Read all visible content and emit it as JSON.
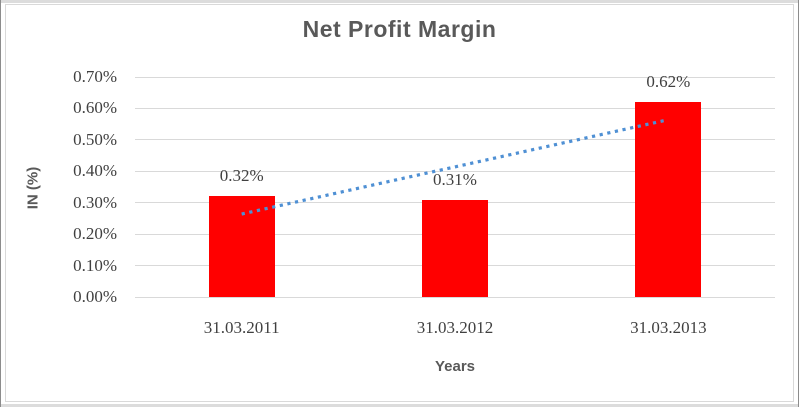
{
  "chart_data": {
    "type": "bar",
    "title": "Net Profit Margin",
    "xlabel": "Years",
    "ylabel": "IN (%)",
    "categories": [
      "31.03.2011",
      "31.03.2012",
      "31.03.2013"
    ],
    "values": [
      0.32,
      0.31,
      0.62
    ],
    "data_labels": [
      "0.32%",
      "0.31%",
      "0.62%"
    ],
    "y_ticks": [
      "0.00%",
      "0.10%",
      "0.20%",
      "0.30%",
      "0.40%",
      "0.50%",
      "0.60%",
      "0.70%"
    ],
    "y_tick_step": 0.1,
    "ylim": [
      0,
      0.7
    ],
    "grid": true,
    "legend": "none",
    "bar_color": "#ff0000",
    "trendline": {
      "type": "linear",
      "style": "dotted",
      "color": "#4f90d4",
      "start_value": 0.264,
      "end_value": 0.562
    }
  },
  "colors": {
    "title_text": "#595959",
    "axis_title_text": "#595959",
    "tick_text": "#404040",
    "gridline": "#d9d9d9",
    "chart_border": "#d9d9d9",
    "frame_edge": "#8c8c8c",
    "background": "#ffffff"
  }
}
